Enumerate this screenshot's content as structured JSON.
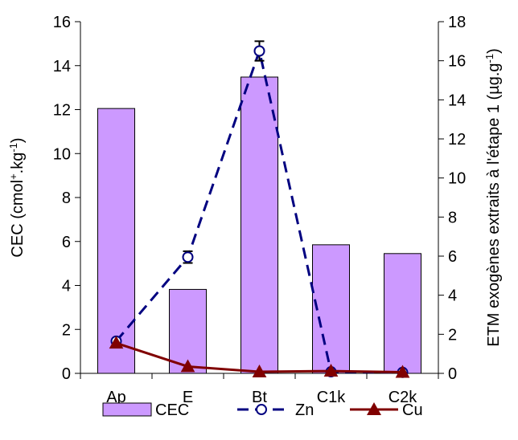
{
  "chart_data": {
    "type": "bar",
    "categories": [
      "Ap",
      "E",
      "Bt",
      "C1k",
      "C2k"
    ],
    "left_axis": {
      "label": "CEC (cmol+.kg-1)",
      "ylim": [
        0,
        16
      ],
      "ticks": [
        0,
        2,
        4,
        6,
        8,
        10,
        12,
        14,
        16
      ]
    },
    "right_axis": {
      "label": "ETM exogènes extraits à l'étape 1 (µg.g-1)",
      "ylim": [
        0,
        18
      ],
      "ticks": [
        0,
        2,
        4,
        6,
        8,
        10,
        12,
        14,
        16,
        18
      ]
    },
    "series": [
      {
        "name": "CEC",
        "kind": "bar",
        "axis": "left",
        "color": "#cc99ff",
        "values": [
          12.05,
          3.82,
          13.48,
          5.85,
          5.45
        ]
      },
      {
        "name": "Zn",
        "kind": "line",
        "axis": "right",
        "color": "#000080",
        "style": "dashed",
        "marker": "open-circle",
        "values": [
          1.65,
          5.95,
          16.5,
          0.08,
          0.05
        ],
        "errors": [
          0.1,
          0.3,
          0.5,
          0,
          0
        ]
      },
      {
        "name": "Cu",
        "kind": "line",
        "axis": "right",
        "color": "#800000",
        "style": "solid",
        "marker": "triangle",
        "values": [
          1.55,
          0.35,
          0.08,
          0.12,
          0.06
        ]
      }
    ],
    "legend": {
      "position": "bottom",
      "labels": [
        "CEC",
        "Zn",
        "Cu"
      ]
    },
    "grid": false
  }
}
